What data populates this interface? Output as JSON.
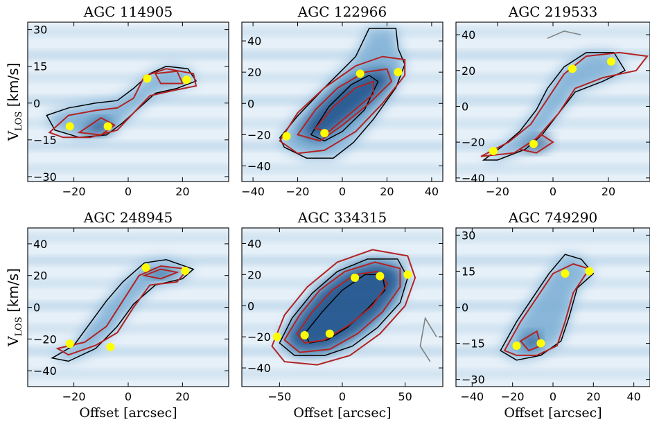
{
  "figure": {
    "y_label_main": "V",
    "y_label_sub": "LOS",
    "y_label_unit": " [km/s]",
    "x_label": "Offset [arcsec]"
  },
  "colors": {
    "background_light": "#e6f0f8",
    "emission_mid": "#7fb0d6",
    "emission_peak": "#0b3f7d",
    "model_contour": "#b22222",
    "data_contour": "#000000",
    "negative_contour": "#808080",
    "rotation_points": "#ffff00"
  },
  "chart_data": [
    {
      "type": "heatmap",
      "title": "AGC 114905",
      "xlim": [
        -37,
        37
      ],
      "ylim": [
        -32,
        33
      ],
      "xticks": [
        -20,
        0,
        20
      ],
      "yticks": [
        -30,
        -15,
        0,
        15,
        30
      ],
      "show_xlabel": false,
      "show_ylabel": true,
      "rotation_curve_points": [
        [
          -21.5,
          -9.5
        ],
        [
          -7.5,
          -9.5
        ],
        [
          7,
          10
        ],
        [
          21.5,
          9.5
        ]
      ],
      "data_contours": [
        [
          [
            -30,
            -5
          ],
          [
            -22,
            -2
          ],
          [
            -12,
            0
          ],
          [
            -4,
            1
          ],
          [
            2,
            6
          ],
          [
            8,
            12
          ],
          [
            14,
            15
          ],
          [
            22,
            14
          ],
          [
            25,
            9
          ],
          [
            18,
            6
          ],
          [
            10,
            4
          ],
          [
            4,
            -2
          ],
          [
            -2,
            -8
          ],
          [
            -8,
            -13
          ],
          [
            -18,
            -14
          ],
          [
            -27,
            -11
          ]
        ]
      ],
      "model_contours": [
        [
          [
            -29,
            -12
          ],
          [
            -22,
            -5
          ],
          [
            -12,
            -3
          ],
          [
            -4,
            -2
          ],
          [
            2,
            2
          ],
          [
            6,
            11
          ],
          [
            14,
            14
          ],
          [
            24,
            12
          ],
          [
            25,
            7
          ],
          [
            16,
            5
          ],
          [
            8,
            3
          ],
          [
            2,
            -4
          ],
          [
            -4,
            -11
          ],
          [
            -14,
            -14
          ],
          [
            -24,
            -14
          ]
        ],
        [
          [
            -18,
            -12
          ],
          [
            -10,
            -6
          ],
          [
            -5,
            -9
          ],
          [
            -10,
            -13
          ]
        ],
        [
          [
            10,
            12
          ],
          [
            18,
            13
          ],
          [
            20,
            8
          ],
          [
            12,
            8
          ]
        ]
      ],
      "negative_contours": []
    },
    {
      "type": "heatmap",
      "title": "AGC 122966",
      "xlim": [
        -45,
        45
      ],
      "ylim": [
        -50,
        52
      ],
      "xticks": [
        -40,
        -20,
        0,
        20,
        40
      ],
      "yticks": [
        -40,
        -20,
        0,
        20,
        40
      ],
      "show_xlabel": false,
      "show_ylabel": false,
      "rotation_curve_points": [
        [
          -25,
          -21
        ],
        [
          -8,
          -19
        ],
        [
          8,
          19
        ],
        [
          25,
          20
        ]
      ],
      "data_contours": [
        [
          [
            -28,
            -22
          ],
          [
            -20,
            -8
          ],
          [
            -8,
            10
          ],
          [
            6,
            30
          ],
          [
            12,
            48
          ],
          [
            24,
            48
          ],
          [
            25,
            35
          ],
          [
            28,
            25
          ],
          [
            24,
            10
          ],
          [
            14,
            -10
          ],
          [
            5,
            -25
          ],
          [
            -4,
            -35
          ],
          [
            -16,
            -35
          ],
          [
            -26,
            -28
          ]
        ],
        [
          [
            -14,
            -20
          ],
          [
            -6,
            -2
          ],
          [
            4,
            12
          ],
          [
            12,
            18
          ],
          [
            16,
            14
          ],
          [
            10,
            -4
          ],
          [
            0,
            -18
          ],
          [
            -8,
            -24
          ]
        ]
      ],
      "model_contours": [
        [
          [
            -28,
            -24
          ],
          [
            -20,
            -6
          ],
          [
            -8,
            10
          ],
          [
            6,
            24
          ],
          [
            18,
            30
          ],
          [
            28,
            28
          ],
          [
            28,
            18
          ],
          [
            18,
            0
          ],
          [
            6,
            -18
          ],
          [
            -8,
            -30
          ],
          [
            -20,
            -32
          ]
        ],
        [
          [
            -20,
            -20
          ],
          [
            -12,
            -4
          ],
          [
            -2,
            10
          ],
          [
            10,
            20
          ],
          [
            20,
            22
          ],
          [
            22,
            14
          ],
          [
            12,
            0
          ],
          [
            0,
            -14
          ],
          [
            -10,
            -24
          ]
        ],
        [
          [
            -12,
            -16
          ],
          [
            -4,
            -2
          ],
          [
            6,
            10
          ],
          [
            14,
            14
          ],
          [
            14,
            6
          ],
          [
            4,
            -6
          ],
          [
            -6,
            -18
          ]
        ]
      ],
      "negative_contours": []
    },
    {
      "type": "heatmap",
      "title": "AGC 219533",
      "xlim": [
        -35,
        35
      ],
      "ylim": [
        -42,
        47
      ],
      "xticks": [
        -20,
        0,
        20
      ],
      "yticks": [
        -40,
        -20,
        0,
        20,
        40
      ],
      "show_xlabel": false,
      "show_ylabel": false,
      "rotation_curve_points": [
        [
          -21.5,
          -25
        ],
        [
          -7,
          -21
        ],
        [
          7,
          21
        ],
        [
          21,
          25
        ]
      ],
      "data_contours": [
        [
          [
            -25,
            -30
          ],
          [
            -18,
            -22
          ],
          [
            -12,
            -14
          ],
          [
            -6,
            -2
          ],
          [
            -2,
            10
          ],
          [
            4,
            22
          ],
          [
            12,
            30
          ],
          [
            22,
            30
          ],
          [
            26,
            20
          ],
          [
            18,
            14
          ],
          [
            8,
            8
          ],
          [
            2,
            -4
          ],
          [
            -4,
            -16
          ],
          [
            -10,
            -24
          ],
          [
            -20,
            -30
          ]
        ]
      ],
      "model_contours": [
        [
          [
            -26,
            -28
          ],
          [
            -16,
            -20
          ],
          [
            -8,
            -10
          ],
          [
            -2,
            4
          ],
          [
            4,
            18
          ],
          [
            12,
            28
          ],
          [
            24,
            30
          ],
          [
            34,
            28
          ],
          [
            30,
            20
          ],
          [
            18,
            16
          ],
          [
            8,
            10
          ],
          [
            2,
            -4
          ],
          [
            -6,
            -18
          ],
          [
            -14,
            -26
          ]
        ],
        [
          [
            -12,
            -24
          ],
          [
            -4,
            -16
          ],
          [
            0,
            -20
          ],
          [
            -6,
            -26
          ]
        ]
      ],
      "negative_contours": [
        [
          [
            -2,
            38
          ],
          [
            4,
            42
          ],
          [
            10,
            40
          ]
        ]
      ]
    },
    {
      "type": "heatmap",
      "title": "AGC 248945",
      "xlim": [
        -37,
        37
      ],
      "ylim": [
        -50,
        50
      ],
      "xticks": [
        -20,
        0,
        20
      ],
      "yticks": [
        -40,
        -20,
        0,
        20,
        40
      ],
      "show_xlabel": true,
      "show_ylabel": true,
      "rotation_curve_points": [
        [
          -21.5,
          -23
        ],
        [
          -6.5,
          -25
        ],
        [
          6.5,
          25
        ],
        [
          21,
          23
        ]
      ],
      "data_contours": [
        [
          [
            -28,
            -32
          ],
          [
            -20,
            -24
          ],
          [
            -14,
            -10
          ],
          [
            -8,
            4
          ],
          [
            -2,
            16
          ],
          [
            6,
            28
          ],
          [
            14,
            30
          ],
          [
            24,
            24
          ],
          [
            20,
            18
          ],
          [
            10,
            14
          ],
          [
            2,
            2
          ],
          [
            -4,
            -12
          ],
          [
            -12,
            -26
          ],
          [
            -22,
            -34
          ]
        ]
      ],
      "model_contours": [
        [
          [
            -26,
            -26
          ],
          [
            -16,
            -22
          ],
          [
            -8,
            -12
          ],
          [
            -2,
            4
          ],
          [
            4,
            20
          ],
          [
            12,
            26
          ],
          [
            22,
            24
          ],
          [
            18,
            16
          ],
          [
            8,
            14
          ],
          [
            2,
            0
          ],
          [
            -4,
            -16
          ],
          [
            -12,
            -24
          ],
          [
            -22,
            -30
          ]
        ],
        [
          [
            6,
            20
          ],
          [
            12,
            24
          ],
          [
            18,
            22
          ],
          [
            12,
            18
          ]
        ]
      ],
      "negative_contours": []
    },
    {
      "type": "heatmap",
      "title": "AGC 334315",
      "xlim": [
        -80,
        80
      ],
      "ylim": [
        -52,
        50
      ],
      "xticks": [
        -50,
        0,
        50
      ],
      "yticks": [
        -40,
        -20,
        0,
        20,
        40
      ],
      "show_xlabel": true,
      "show_ylabel": false,
      "rotation_curve_points": [
        [
          -52,
          -20
        ],
        [
          -30,
          -19
        ],
        [
          -10,
          -18
        ],
        [
          10,
          18
        ],
        [
          30,
          19
        ],
        [
          52,
          20
        ]
      ],
      "data_contours": [
        [
          [
            -50,
            -24
          ],
          [
            -40,
            -8
          ],
          [
            -24,
            8
          ],
          [
            -4,
            22
          ],
          [
            20,
            30
          ],
          [
            44,
            30
          ],
          [
            52,
            18
          ],
          [
            46,
            2
          ],
          [
            28,
            -14
          ],
          [
            8,
            -26
          ],
          [
            -14,
            -32
          ],
          [
            -38,
            -32
          ]
        ],
        [
          [
            -30,
            -18
          ],
          [
            -16,
            -4
          ],
          [
            0,
            10
          ],
          [
            18,
            20
          ],
          [
            32,
            20
          ],
          [
            34,
            10
          ],
          [
            20,
            -2
          ],
          [
            4,
            -14
          ],
          [
            -12,
            -22
          ],
          [
            -26,
            -24
          ]
        ]
      ],
      "model_contours": [
        [
          [
            -56,
            -26
          ],
          [
            -46,
            -6
          ],
          [
            -28,
            12
          ],
          [
            -4,
            28
          ],
          [
            24,
            36
          ],
          [
            52,
            32
          ],
          [
            58,
            18
          ],
          [
            50,
            0
          ],
          [
            30,
            -18
          ],
          [
            6,
            -32
          ],
          [
            -20,
            -38
          ],
          [
            -46,
            -36
          ]
        ],
        [
          [
            -46,
            -22
          ],
          [
            -34,
            -6
          ],
          [
            -18,
            10
          ],
          [
            2,
            22
          ],
          [
            26,
            28
          ],
          [
            46,
            24
          ],
          [
            46,
            12
          ],
          [
            32,
            -4
          ],
          [
            12,
            -18
          ],
          [
            -10,
            -28
          ],
          [
            -34,
            -30
          ]
        ],
        [
          [
            -36,
            -18
          ],
          [
            -24,
            -4
          ],
          [
            -8,
            10
          ],
          [
            10,
            20
          ],
          [
            28,
            22
          ],
          [
            36,
            14
          ],
          [
            24,
            0
          ],
          [
            6,
            -12
          ],
          [
            -14,
            -22
          ],
          [
            -30,
            -24
          ]
        ]
      ],
      "negative_contours": [
        [
          [
            75,
            -20
          ],
          [
            66,
            -8
          ],
          [
            62,
            -26
          ],
          [
            70,
            -36
          ]
        ]
      ]
    },
    {
      "type": "heatmap",
      "title": "AGC 749290",
      "xlim": [
        -48,
        48
      ],
      "ylim": [
        -33,
        33
      ],
      "xticks": [
        -40,
        -20,
        0,
        20,
        40
      ],
      "yticks": [
        -30,
        -15,
        0,
        15,
        30
      ],
      "show_xlabel": true,
      "show_ylabel": false,
      "rotation_curve_points": [
        [
          -18,
          -16
        ],
        [
          -6,
          -15
        ],
        [
          6,
          14
        ],
        [
          18,
          15
        ]
      ],
      "data_contours": [
        [
          [
            -26,
            -18
          ],
          [
            -18,
            -6
          ],
          [
            -10,
            4
          ],
          [
            -2,
            14
          ],
          [
            6,
            22
          ],
          [
            14,
            20
          ],
          [
            20,
            14
          ],
          [
            12,
            8
          ],
          [
            8,
            -4
          ],
          [
            4,
            -14
          ],
          [
            -6,
            -20
          ],
          [
            -18,
            -22
          ]
        ]
      ],
      "model_contours": [
        [
          [
            -24,
            -18
          ],
          [
            -16,
            -6
          ],
          [
            -8,
            4
          ],
          [
            0,
            14
          ],
          [
            10,
            18
          ],
          [
            18,
            16
          ],
          [
            10,
            6
          ],
          [
            6,
            -6
          ],
          [
            2,
            -16
          ],
          [
            -8,
            -20
          ],
          [
            -18,
            -20
          ]
        ],
        [
          [
            -16,
            -14
          ],
          [
            -8,
            -10
          ],
          [
            -6,
            -16
          ],
          [
            -12,
            -18
          ]
        ]
      ],
      "negative_contours": []
    }
  ]
}
